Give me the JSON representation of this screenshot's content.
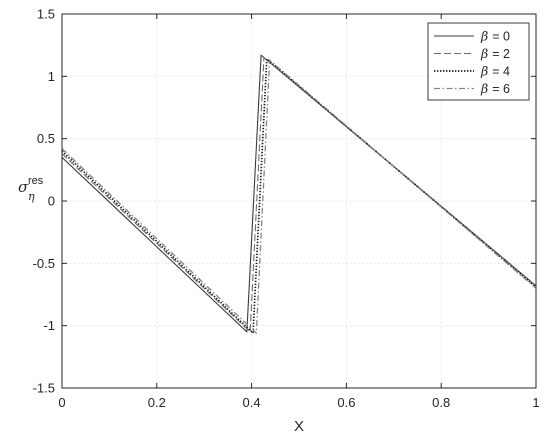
{
  "chart_data": {
    "type": "line",
    "xlabel": "X",
    "ylabel": "σ",
    "ylabel_sup": "res",
    "ylabel_sub": "η",
    "xlim": [
      0,
      1
    ],
    "ylim": [
      -1.5,
      1.5
    ],
    "xticks": [
      0,
      0.2,
      0.4,
      0.6,
      0.8,
      1
    ],
    "xtick_labels": [
      "0",
      "0.2",
      "0.4",
      "0.6",
      "0.8",
      "1"
    ],
    "yticks": [
      -1.5,
      -1,
      -0.5,
      0,
      0.5,
      1,
      1.5
    ],
    "ytick_labels": [
      "-1.5",
      "-1",
      "-0.5",
      "0",
      "0.5",
      "1",
      "1.5"
    ],
    "grid": true,
    "legend_position": "top-right",
    "series": [
      {
        "name": "β = 0",
        "legend_symbol": "β",
        "legend_value": "= 0",
        "style": "solid",
        "x": [
          0,
          0.39,
          0.42,
          1
        ],
        "y": [
          0.35,
          -1.05,
          1.17,
          -0.68
        ]
      },
      {
        "name": "β = 2",
        "legend_symbol": "β",
        "legend_value": "= 2",
        "style": "dashed",
        "x": [
          0,
          0.397,
          0.426,
          1
        ],
        "y": [
          0.38,
          -1.05,
          1.15,
          -0.68
        ]
      },
      {
        "name": "β = 4",
        "legend_symbol": "β",
        "legend_value": "= 4",
        "style": "dotted",
        "x": [
          0,
          0.403,
          0.432,
          1
        ],
        "y": [
          0.4,
          -1.06,
          1.14,
          -0.69
        ]
      },
      {
        "name": "β = 6",
        "legend_symbol": "β",
        "legend_value": "= 6",
        "style": "dashdot",
        "x": [
          0,
          0.41,
          0.438,
          1
        ],
        "y": [
          0.42,
          -1.06,
          1.13,
          -0.7
        ]
      }
    ]
  }
}
